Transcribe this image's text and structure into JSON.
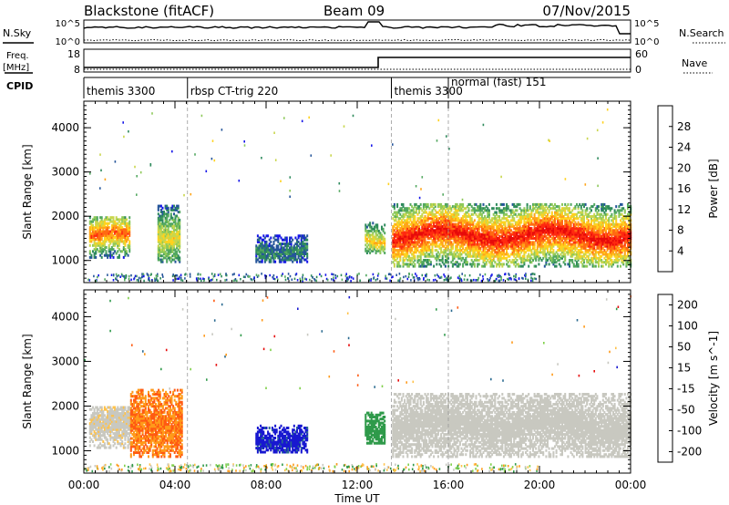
{
  "header": {
    "station": "Blackstone (fitACF)",
    "beam": "Beam 09",
    "date": "07/Nov/2015"
  },
  "top_panels": {
    "nsky_label": "N.Sky",
    "nsearch_label": "N.Search",
    "noise_ticks": [
      "10^5",
      "10^0"
    ],
    "freq_label": "Freq.",
    "freq_unit": "[MHz]",
    "freq_ticks": [
      "18",
      "8"
    ],
    "nave_label": "Nave",
    "nave_ticks": [
      "60",
      "0"
    ],
    "cpid_label": "CPID",
    "cpid_segments": [
      {
        "label": "themis 3300",
        "start_hour": 0.0
      },
      {
        "label": "rbsp CT-trig 220",
        "start_hour": 4.55
      },
      {
        "label": "themis 3300",
        "start_hour": 13.5
      },
      {
        "label": "normal (fast) 151",
        "start_hour": 16.0
      }
    ]
  },
  "chart_data": [
    {
      "type": "heatmap",
      "title": "Power",
      "xlabel": "Time UT",
      "ylabel": "Slant Range [km]",
      "x_ticks": [
        "00:00",
        "04:00",
        "08:00",
        "12:00",
        "16:00",
        "20:00",
        "00:00"
      ],
      "xlim_hours": [
        0,
        24
      ],
      "y_ticks": [
        1000,
        2000,
        3000,
        4000
      ],
      "ylim": [
        500,
        4600
      ],
      "colorbar": {
        "label": "Power [dB]",
        "ticks": [
          "4",
          "8",
          "12",
          "16",
          "20",
          "24",
          "28"
        ],
        "colors": [
          "#1515e8",
          "#25559a",
          "#2e8a5c",
          "#53a860",
          "#8ec95a",
          "#c9d64c",
          "#ffd21e",
          "#ffa518",
          "#ff6a12",
          "#ff2a10",
          "#e60a0a"
        ]
      },
      "echo_regions": [
        {
          "t_start": 0.2,
          "t_end": 2.0,
          "range_low_km": 1100,
          "range_high_km": 2000,
          "peak_power_db": 26
        },
        {
          "t_start": 3.2,
          "t_end": 4.2,
          "range_low_km": 1000,
          "range_high_km": 2300,
          "peak_power_db": 18
        },
        {
          "t_start": 7.5,
          "t_end": 9.8,
          "range_low_km": 1000,
          "range_high_km": 1600,
          "peak_power_db": 8
        },
        {
          "t_start": 12.3,
          "t_end": 13.2,
          "range_low_km": 1200,
          "range_high_km": 1900,
          "peak_power_db": 20
        },
        {
          "t_start": 13.5,
          "t_end": 24.0,
          "range_low_km": 900,
          "range_high_km": 2300,
          "peak_power_db": 30
        }
      ]
    },
    {
      "type": "heatmap",
      "title": "Velocity",
      "xlabel": "Time UT",
      "ylabel": "Slant Range [km]",
      "x_ticks": [
        "00:00",
        "04:00",
        "08:00",
        "12:00",
        "16:00",
        "20:00",
        "00:00"
      ],
      "xlim_hours": [
        0,
        24
      ],
      "y_ticks": [
        1000,
        2000,
        3000,
        4000
      ],
      "ylim": [
        500,
        4600
      ],
      "colorbar": {
        "label": "Velocity [m s^-1]",
        "ticks": [
          "200",
          "100",
          "50",
          "15",
          "-15",
          "-50",
          "-100",
          "-200"
        ],
        "colors": [
          "#1818d0",
          "#2a6a90",
          "#2f9a4a",
          "#7fd04a",
          "#c8c8c0",
          "#ffc24a",
          "#ff9a1a",
          "#ff5a12",
          "#e60a0a"
        ]
      },
      "echo_regions": [
        {
          "t_start": 0.2,
          "t_end": 2.0,
          "range_low_km": 1100,
          "range_high_km": 2000,
          "velocity_ms": -10
        },
        {
          "t_start": 2.0,
          "t_end": 4.3,
          "range_low_km": 900,
          "range_high_km": 2400,
          "velocity_ms": -110
        },
        {
          "t_start": 7.5,
          "t_end": 9.8,
          "range_low_km": 1000,
          "range_high_km": 1600,
          "velocity_ms": 170
        },
        {
          "t_start": 12.3,
          "t_end": 13.2,
          "range_low_km": 1200,
          "range_high_km": 1900,
          "velocity_ms": 90
        },
        {
          "t_start": 13.5,
          "t_end": 24.0,
          "range_low_km": 900,
          "range_high_km": 2300,
          "velocity_ms": 0
        }
      ]
    }
  ]
}
